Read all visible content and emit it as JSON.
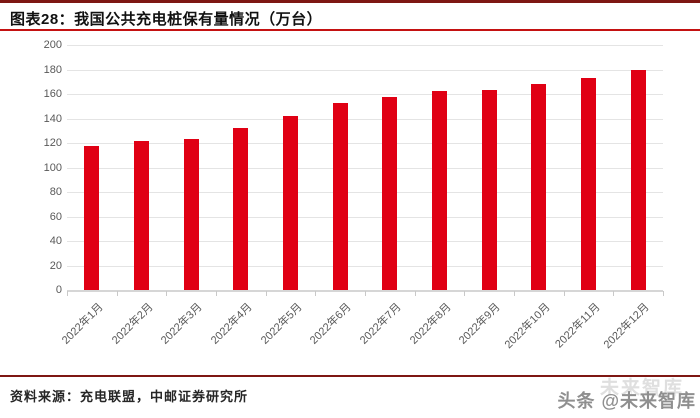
{
  "header": {
    "title": "图表28：我国公共充电桩保有量情况（万台）"
  },
  "chart_data": {
    "type": "bar",
    "title": "我国公共充电桩保有量情况（万台）",
    "categories": [
      "2022年1月",
      "2022年2月",
      "2022年3月",
      "2022年4月",
      "2022年5月",
      "2022年6月",
      "2022年7月",
      "2022年8月",
      "2022年9月",
      "2022年10月",
      "2022年11月",
      "2022年12月"
    ],
    "values": [
      117.8,
      121.3,
      123.2,
      132.2,
      141.8,
      152.8,
      157.5,
      162.3,
      163.6,
      168.0,
      173.1,
      179.7
    ],
    "xlabel": "",
    "ylabel": "",
    "ylim": [
      0,
      200
    ],
    "ytick_step": 20,
    "yticks": [
      0,
      20,
      40,
      60,
      80,
      100,
      120,
      140,
      160,
      180,
      200
    ],
    "grid": true,
    "legend_position": "none",
    "bar_color": "#E00014"
  },
  "footer": {
    "source": "资料来源：充电联盟，中邮证券研究所",
    "watermark": "头条 @未来智库",
    "watermark_ghost": "未来智库"
  },
  "colors": {
    "bar": "#E00014",
    "title_underline": "#C41212",
    "dark_rule": "#7E1713",
    "grid": "#E4E4E4",
    "axis_line": "#D6D6D6",
    "axis_text": "#595959"
  }
}
